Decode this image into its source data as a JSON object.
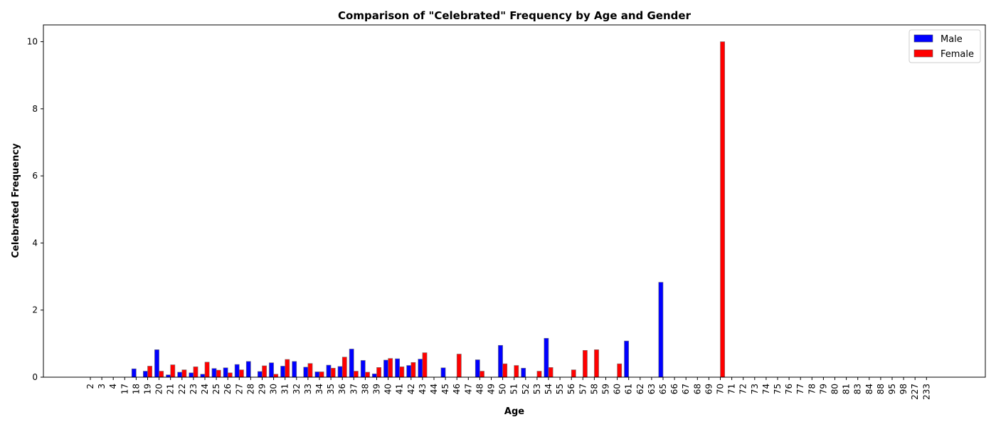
{
  "chart_data": {
    "type": "bar",
    "title": "Comparison of \"Celebrated\" Frequency by Age and Gender",
    "xlabel": "Age",
    "ylabel": "Celebrated Frequency",
    "ylim": [
      0,
      10.5
    ],
    "yticks": [
      0,
      2,
      4,
      6,
      8,
      10
    ],
    "grid": false,
    "legend_position": "top-right",
    "categories": [
      "2",
      "3",
      "4",
      "17",
      "18",
      "19",
      "20",
      "21",
      "22",
      "23",
      "24",
      "25",
      "26",
      "27",
      "28",
      "29",
      "30",
      "31",
      "32",
      "33",
      "34",
      "35",
      "36",
      "37",
      "38",
      "39",
      "40",
      "41",
      "42",
      "43",
      "44",
      "45",
      "46",
      "47",
      "48",
      "49",
      "50",
      "51",
      "52",
      "53",
      "54",
      "55",
      "56",
      "57",
      "58",
      "59",
      "60",
      "61",
      "62",
      "63",
      "65",
      "66",
      "67",
      "68",
      "69",
      "70",
      "71",
      "72",
      "73",
      "74",
      "75",
      "76",
      "77",
      "78",
      "79",
      "80",
      "81",
      "83",
      "84",
      "88",
      "95",
      "98",
      "227",
      "233"
    ],
    "series": [
      {
        "name": "Male",
        "color": "#0000ff",
        "values": [
          0,
          0,
          0,
          0,
          0.25,
          0.18,
          0.82,
          0.07,
          0.15,
          0.13,
          0.09,
          0.26,
          0.28,
          0.38,
          0.47,
          0.17,
          0.43,
          0.33,
          0.47,
          0.3,
          0.16,
          0.36,
          0.32,
          0.84,
          0.5,
          0.1,
          0.51,
          0.55,
          0.35,
          0.54,
          0,
          0.28,
          0,
          0,
          0.52,
          0,
          0.95,
          0,
          0.27,
          0,
          1.16,
          0,
          0,
          0,
          0,
          0,
          0,
          1.08,
          0,
          0,
          2.83,
          0,
          0,
          0,
          0,
          0,
          0,
          0,
          0,
          0,
          0,
          0,
          0,
          0,
          0,
          0,
          0,
          0,
          0,
          0,
          0,
          0,
          0,
          0
        ]
      },
      {
        "name": "Female",
        "color": "#ff0000",
        "values": [
          0,
          0,
          0,
          0,
          0,
          0.33,
          0.18,
          0.37,
          0.22,
          0.31,
          0.45,
          0.21,
          0.13,
          0.22,
          0,
          0.34,
          0.09,
          0.53,
          0,
          0.41,
          0.16,
          0.27,
          0.6,
          0.18,
          0.15,
          0.29,
          0.56,
          0.31,
          0.44,
          0.73,
          0,
          0,
          0.69,
          0,
          0.18,
          0,
          0.4,
          0.35,
          0,
          0.18,
          0.29,
          0,
          0.22,
          0.8,
          0.82,
          0,
          0.4,
          0,
          0,
          0,
          0,
          0,
          0,
          0,
          0,
          10.0,
          0,
          0,
          0,
          0,
          0,
          0,
          0,
          0,
          0,
          0,
          0,
          0,
          0,
          0,
          0,
          0,
          0,
          0
        ]
      }
    ]
  }
}
